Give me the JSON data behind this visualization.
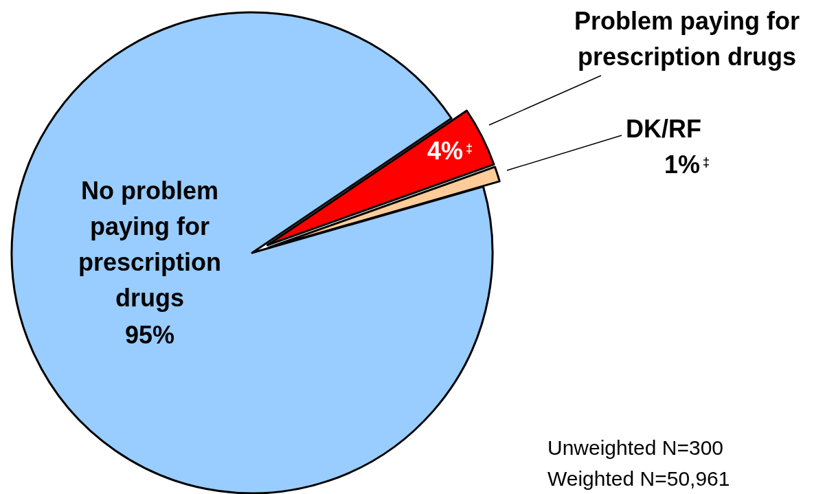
{
  "chart_data": {
    "type": "pie",
    "categories": [
      "No problem paying for prescription drugs",
      "Problem paying for prescription drugs",
      "DK/RF"
    ],
    "values": [
      95,
      4,
      1
    ],
    "colors": [
      "#99ccff",
      "#ff0000",
      "#ffcc99"
    ],
    "value_labels": [
      "95%",
      "4%$^{‡}$",
      "1%$^{‡}$"
    ],
    "annotations": [
      "Unweighted N=300",
      "Weighted N=50,961"
    ]
  }
}
